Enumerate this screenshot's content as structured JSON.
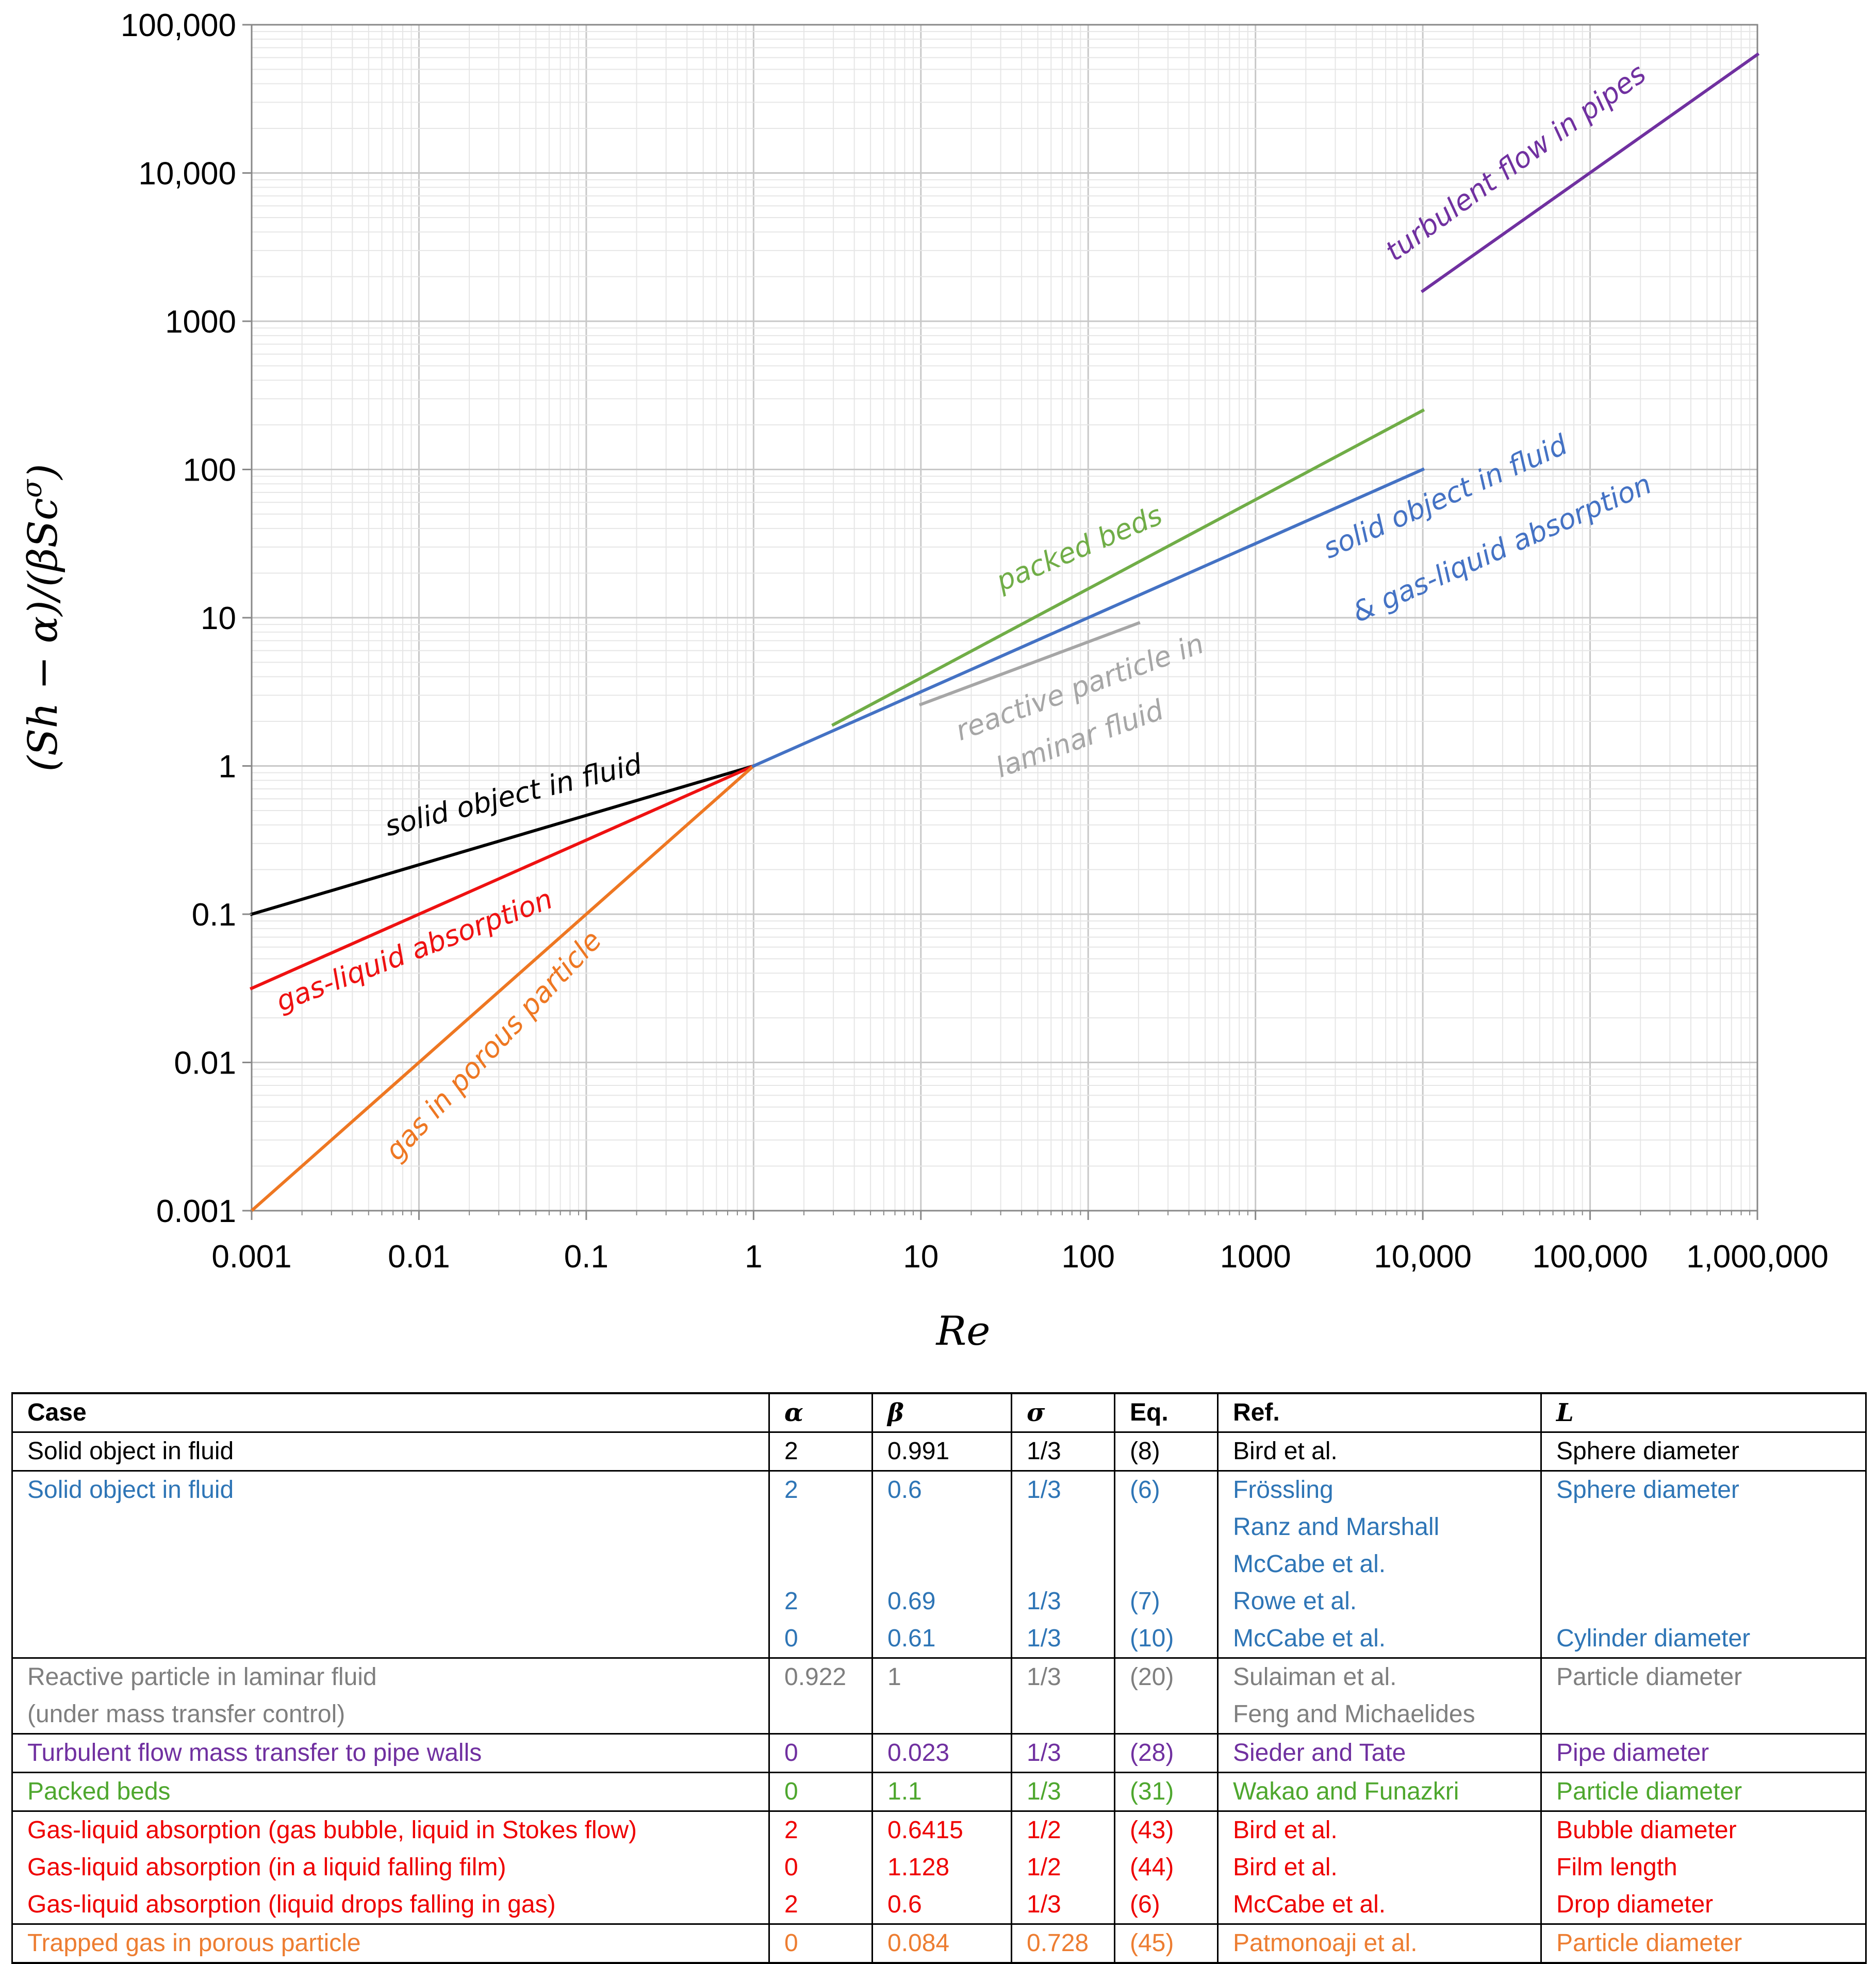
{
  "chart_data": {
    "type": "line",
    "x_scale": "log",
    "y_scale": "log",
    "xlabel": "Re",
    "ylabel": "(Sh − α)/(βSc^σ)",
    "xlim": [
      0.001,
      1000000
    ],
    "ylim": [
      0.001,
      100000
    ],
    "x_ticks": [
      {
        "value": 0.001,
        "label": "0.001"
      },
      {
        "value": 0.01,
        "label": "0.01"
      },
      {
        "value": 0.1,
        "label": "0.1"
      },
      {
        "value": 1,
        "label": "1"
      },
      {
        "value": 10,
        "label": "10"
      },
      {
        "value": 100,
        "label": "100"
      },
      {
        "value": 1000,
        "label": "1000"
      },
      {
        "value": 10000,
        "label": "10,000"
      },
      {
        "value": 100000,
        "label": "100,000"
      },
      {
        "value": 1000000,
        "label": "1,000,000"
      }
    ],
    "y_ticks": [
      {
        "value": 0.001,
        "label": "0.001"
      },
      {
        "value": 0.01,
        "label": "0.01"
      },
      {
        "value": 0.1,
        "label": "0.1"
      },
      {
        "value": 1,
        "label": "1"
      },
      {
        "value": 10,
        "label": "10"
      },
      {
        "value": 100,
        "label": "100"
      },
      {
        "value": 1000,
        "label": "1000"
      },
      {
        "value": 10000,
        "label": "10,000"
      },
      {
        "value": 100000,
        "label": "100,000"
      }
    ],
    "grid": true,
    "series": [
      {
        "name": "solid object in fluid",
        "color": "#000000",
        "x": [
          0.001,
          1
        ],
        "y": [
          0.1,
          1
        ]
      },
      {
        "name": "gas-liquid absorption",
        "color": "#ee1111",
        "x": [
          0.001,
          1
        ],
        "y": [
          0.0316,
          1
        ]
      },
      {
        "name": "gas in porous particle",
        "color": "#ee7722",
        "x": [
          0.001,
          1
        ],
        "y": [
          0.001,
          1
        ]
      },
      {
        "name": "solid object in fluid & gas-liquid absorption",
        "color": "#4472c4",
        "x": [
          1,
          10000
        ],
        "y": [
          1,
          100
        ]
      },
      {
        "name": "packed beds",
        "color": "#70ad47",
        "x": [
          3,
          10000
        ],
        "y": [
          1.9,
          250
        ]
      },
      {
        "name": "reactive particle in laminar fluid",
        "color": "#a6a6a6",
        "x": [
          10,
          200
        ],
        "y": [
          2.6,
          9.2
        ]
      },
      {
        "name": "turbulent flow in pipes",
        "color": "#7030a0",
        "x": [
          10000,
          1000000
        ],
        "y": [
          1600,
          63000
        ]
      }
    ],
    "annotations": [
      {
        "text": "solid object in fluid",
        "color": "#000000"
      },
      {
        "text": "gas-liquid absorption",
        "color": "#ee1111"
      },
      {
        "text": "gas in porous particle",
        "color": "#ee7722"
      },
      {
        "text": "packed beds",
        "color": "#70ad47"
      },
      {
        "text": "reactive particle in",
        "color": "#a6a6a6"
      },
      {
        "text": "laminar fluid",
        "color": "#a6a6a6"
      },
      {
        "text": "solid object in fluid",
        "color": "#4472c4"
      },
      {
        "text": "& gas-liquid absorption",
        "color": "#4472c4"
      },
      {
        "text": "turbulent flow in pipes",
        "color": "#7030a0"
      }
    ]
  },
  "table": {
    "headers": {
      "case": "Case",
      "alpha": "α",
      "beta": "β",
      "sigma": "σ",
      "eq": "Eq.",
      "ref": "Ref.",
      "L": "L"
    },
    "rows": [
      {
        "color": "#000000",
        "group_end": true,
        "case": "Solid object in fluid",
        "alpha": "2",
        "beta": "0.991",
        "sigma": "1/3",
        "eq": "(8)",
        "ref": "Bird et al.",
        "L": "Sphere diameter"
      },
      {
        "color": "#2e75b6",
        "group_end": false,
        "case": "Solid object in fluid",
        "alpha": "2",
        "beta": "0.6",
        "sigma": "1/3",
        "eq": "(6)",
        "ref": "Frössling",
        "L": "Sphere diameter"
      },
      {
        "color": "#2e75b6",
        "group_end": false,
        "case": "",
        "alpha": "",
        "beta": "",
        "sigma": "",
        "eq": "",
        "ref": "Ranz and Marshall",
        "L": ""
      },
      {
        "color": "#2e75b6",
        "group_end": false,
        "case": "",
        "alpha": "",
        "beta": "",
        "sigma": "",
        "eq": "",
        "ref": "McCabe et al.",
        "L": ""
      },
      {
        "color": "#2e75b6",
        "group_end": false,
        "case": "",
        "alpha": "2",
        "beta": "0.69",
        "sigma": "1/3",
        "eq": "(7)",
        "ref": "Rowe et al.",
        "L": ""
      },
      {
        "color": "#2e75b6",
        "group_end": true,
        "case": "",
        "alpha": "0",
        "beta": "0.61",
        "sigma": "1/3",
        "eq": "(10)",
        "ref": "McCabe et al.",
        "L": "Cylinder diameter"
      },
      {
        "color": "#7f7f7f",
        "group_end": false,
        "case": "Reactive particle in laminar fluid",
        "alpha": "0.922",
        "beta": "1",
        "sigma": "1/3",
        "eq": "(20)",
        "ref": "Sulaiman et al.",
        "L": "Particle diameter"
      },
      {
        "color": "#7f7f7f",
        "group_end": true,
        "case": "(under mass transfer control)",
        "alpha": "",
        "beta": "",
        "sigma": "",
        "eq": "",
        "ref": "Feng and Michaelides",
        "L": ""
      },
      {
        "color": "#7030a0",
        "group_end": true,
        "case": "Turbulent flow mass transfer to pipe walls",
        "alpha": "0",
        "beta": "0.023",
        "sigma": "1/3",
        "eq": "(28)",
        "ref": "Sieder and Tate",
        "L": "Pipe diameter"
      },
      {
        "color": "#4ea72e",
        "group_end": true,
        "case": "Packed beds",
        "alpha": "0",
        "beta": "1.1",
        "sigma": "1/3",
        "eq": "(31)",
        "ref": "Wakao and Funazkri",
        "L": "Particle diameter"
      },
      {
        "color": "#ee0000",
        "group_end": false,
        "case": "Gas-liquid absorption (gas bubble, liquid in Stokes flow)",
        "alpha": "2",
        "beta": "0.6415",
        "sigma": "1/2",
        "eq": "(43)",
        "ref": "Bird et al.",
        "L": "Bubble diameter"
      },
      {
        "color": "#ee0000",
        "group_end": false,
        "case": "Gas-liquid absorption (in a liquid falling film)",
        "alpha": "0",
        "beta": "1.128",
        "sigma": "1/2",
        "eq": "(44)",
        "ref": "Bird et al.",
        "L": "Film length"
      },
      {
        "color": "#ee0000",
        "group_end": true,
        "case": "Gas-liquid absorption (liquid drops falling in gas)",
        "alpha": "2",
        "beta": "0.6",
        "sigma": "1/3",
        "eq": "(6)",
        "ref": "McCabe et al.",
        "L": "Drop diameter"
      },
      {
        "color": "#ed7d31",
        "group_end": true,
        "case": "Trapped gas in porous particle",
        "alpha": "0",
        "beta": "0.084",
        "sigma": "0.728",
        "eq": "(45)",
        "ref": "Patmonoaji et al.",
        "L": "Particle diameter"
      }
    ]
  }
}
